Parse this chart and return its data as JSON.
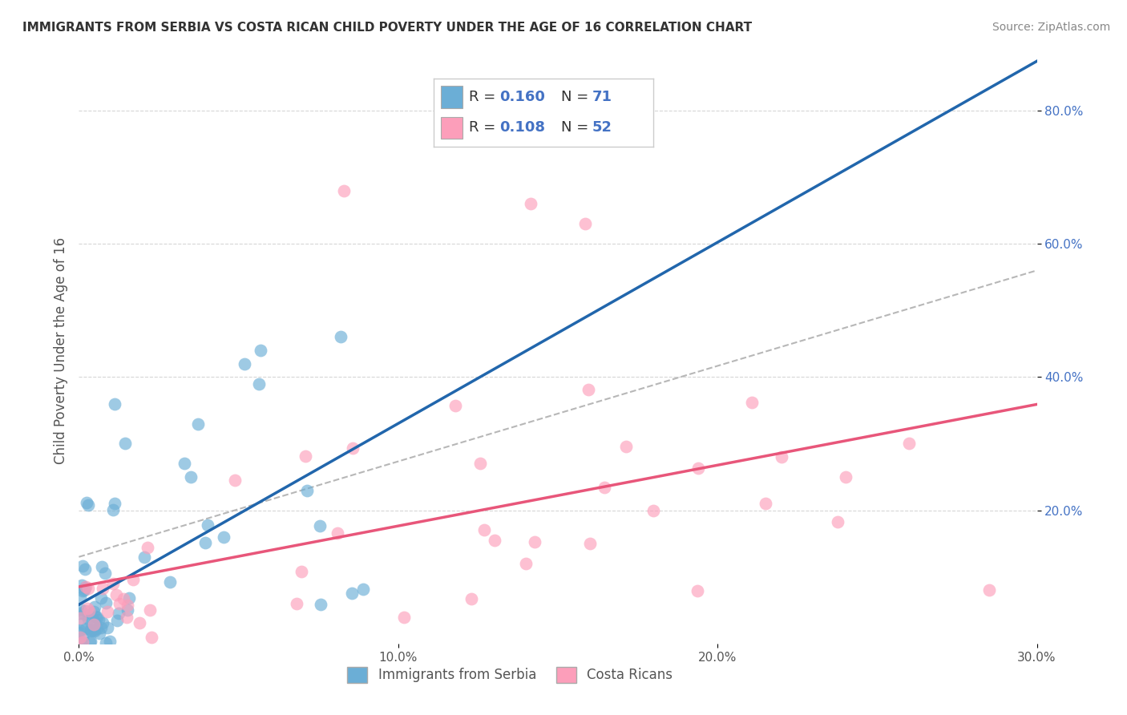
{
  "title": "IMMIGRANTS FROM SERBIA VS COSTA RICAN CHILD POVERTY UNDER THE AGE OF 16 CORRELATION CHART",
  "source": "Source: ZipAtlas.com",
  "ylabel": "Child Poverty Under the Age of 16",
  "xlim": [
    0.0,
    0.3
  ],
  "ylim": [
    0.0,
    0.88
  ],
  "x_ticks": [
    0.0,
    0.1,
    0.2,
    0.3
  ],
  "x_tick_labels": [
    "0.0%",
    "10.0%",
    "20.0%",
    "30.0%"
  ],
  "y_ticks": [
    0.2,
    0.4,
    0.6,
    0.8
  ],
  "y_tick_labels": [
    "20.0%",
    "40.0%",
    "60.0%",
    "80.0%"
  ],
  "serbia_color": "#6baed6",
  "costarica_color": "#fc9eba",
  "serbia_trend_color": "#2166ac",
  "costarica_trend_color": "#e8567a",
  "dashed_line_color": "#b0b0b0",
  "background_color": "#ffffff",
  "grid_color": "#cccccc",
  "serbia_N": 71,
  "costarica_N": 52,
  "serbia_seed": 10,
  "costarica_seed": 20
}
